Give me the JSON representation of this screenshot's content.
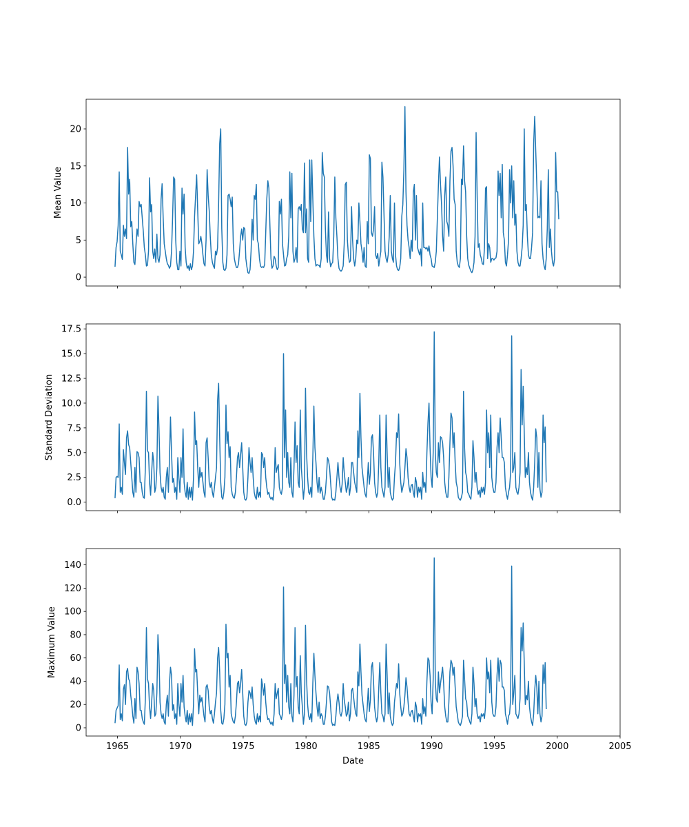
{
  "chart_data": [
    {
      "type": "line",
      "ylabel": "Mean Value",
      "xlabel": "",
      "xlim": [
        1962.5,
        2005
      ],
      "ylim": [
        -1.2,
        24
      ],
      "yticks": [
        0,
        5,
        10,
        15,
        20
      ],
      "ytick_labels": [
        "0",
        "5",
        "10",
        "15",
        "20"
      ],
      "xticks": [
        1965,
        1970,
        1975,
        1980,
        1985,
        1990,
        1995,
        2000,
        2005
      ],
      "xtick_labels": [
        "",
        "",
        "",
        "",
        "",
        "",
        "",
        "",
        ""
      ],
      "color": "#1f77b4",
      "x_start": 1964.8,
      "x_step_years": 0.0833,
      "values": [
        1.4,
        4.0,
        4.8,
        7.0,
        14.2,
        3.5,
        3.0,
        2.4,
        7.0,
        5.5,
        6.5,
        5.2,
        17.5,
        11.2,
        13.2,
        6.8,
        7.5,
        4.5,
        2.0,
        1.7,
        4.2,
        6.5,
        5.5,
        10.2,
        9.5,
        9.8,
        8.0,
        6.2,
        4.0,
        3.0,
        1.5,
        1.6,
        3.5,
        13.4,
        8.8,
        9.8,
        3.5,
        2.5,
        3.8,
        2.0,
        5.8,
        2.5,
        2.0,
        3.0,
        10.5,
        12.6,
        8.0,
        4.5,
        3.5,
        2.5,
        1.8,
        1.6,
        1.2,
        1.5,
        3.5,
        8.0,
        13.5,
        13.2,
        5.0,
        2.0,
        1.0,
        1.0,
        3.5,
        1.5,
        12.0,
        8.5,
        11.2,
        4.0,
        2.0,
        1.2,
        1.5,
        0.9,
        1.8,
        1.0,
        1.5,
        3.5,
        8.2,
        11.0,
        13.8,
        9.0,
        4.5,
        4.8,
        5.5,
        4.5,
        3.0,
        1.8,
        1.5,
        5.0,
        14.5,
        11.0,
        9.0,
        5.5,
        3.0,
        2.0,
        1.5,
        1.2,
        3.5,
        3.0,
        4.0,
        10.0,
        18.0,
        20.0,
        6.5,
        2.0,
        1.0,
        0.9,
        1.2,
        3.0,
        11.0,
        11.2,
        10.5,
        9.5,
        10.8,
        4.5,
        2.5,
        1.8,
        1.3,
        1.3,
        1.8,
        3.5,
        5.5,
        6.5,
        5.0,
        6.7,
        6.5,
        2.5,
        1.4,
        0.6,
        0.5,
        1.0,
        3.5,
        7.8,
        5.0,
        11.0,
        10.5,
        12.5,
        5.0,
        4.5,
        2.5,
        1.5,
        1.3,
        1.4,
        1.3,
        1.7,
        6.0,
        10.5,
        13.0,
        12.0,
        7.0,
        2.5,
        1.2,
        1.5,
        2.8,
        2.5,
        1.5,
        1.0,
        1.3,
        10.2,
        8.5,
        10.5,
        4.5,
        3.0,
        1.5,
        1.6,
        2.5,
        3.0,
        5.5,
        14.2,
        8.0,
        14.0,
        3.5,
        2.0,
        2.5,
        4.0,
        2.0,
        9.2,
        9.5,
        9.0,
        9.8,
        6.5,
        6.0,
        15.4,
        6.0,
        9.2,
        2.5,
        2.0,
        15.8,
        7.5,
        15.8,
        10.5,
        5.5,
        2.5,
        1.5,
        1.7,
        1.6,
        1.6,
        1.3,
        2.5,
        16.8,
        14.0,
        13.5,
        6.5,
        3.0,
        2.0,
        8.8,
        2.5,
        1.4,
        1.8,
        2.0,
        5.5,
        13.5,
        8.0,
        5.5,
        2.5,
        1.2,
        0.9,
        0.8,
        1.0,
        1.5,
        4.5,
        12.5,
        12.8,
        5.0,
        3.0,
        2.0,
        2.2,
        9.5,
        5.0,
        2.5,
        1.5,
        2.5,
        5.0,
        4.5,
        10.0,
        7.5,
        4.5,
        3.5,
        2.0,
        4.0,
        1.5,
        1.3,
        7.5,
        4.5,
        16.5,
        16.0,
        6.0,
        5.5,
        6.5,
        9.5,
        3.0,
        2.5,
        3.2,
        1.5,
        2.5,
        3.5,
        15.5,
        13.5,
        8.5,
        3.5,
        2.5,
        2.0,
        3.0,
        5.5,
        11.0,
        3.5,
        2.5,
        2.0,
        10.0,
        3.0,
        1.5,
        1.0,
        0.9,
        1.3,
        2.5,
        8.2,
        9.8,
        14.5,
        23.0,
        11.5,
        7.0,
        5.0,
        4.0,
        2.5,
        5.0,
        3.5,
        11.5,
        12.5,
        5.0,
        11.0,
        4.0,
        3.5,
        3.0,
        3.8,
        1.5,
        10.0,
        4.0,
        4.0,
        3.8,
        4.0,
        3.5,
        4.2,
        3.0,
        2.5,
        1.5,
        1.4,
        1.3,
        2.0,
        3.5,
        8.0,
        12.5,
        16.2,
        12.5,
        9.8,
        5.5,
        3.5,
        11.0,
        13.5,
        7.5,
        7.0,
        5.5,
        13.0,
        17.0,
        17.5,
        15.0,
        10.5,
        9.8,
        3.5,
        2.0,
        1.5,
        1.3,
        2.5,
        13.2,
        12.5,
        17.7,
        13.0,
        11.5,
        5.5,
        2.5,
        1.6,
        1.2,
        0.8,
        0.6,
        1.0,
        2.0,
        5.5,
        19.5,
        11.0,
        4.0,
        4.5,
        3.0,
        2.5,
        1.8,
        1.7,
        4.0,
        12.0,
        12.2,
        2.5,
        4.5,
        4.0,
        2.0,
        2.5,
        2.5,
        2.3,
        2.5,
        2.6,
        3.5,
        14.3,
        11.0,
        14.0,
        8.0,
        15.2,
        6.0,
        5.0,
        2.0,
        1.5,
        3.0,
        5.0,
        14.5,
        10.0,
        15.0,
        8.0,
        13.0,
        7.0,
        8.5,
        3.5,
        2.0,
        1.5,
        1.5,
        2.5,
        4.0,
        7.0,
        20.0,
        9.0,
        9.8,
        5.5,
        3.0,
        2.5,
        2.5,
        4.0,
        6.0,
        18.0,
        21.7,
        17.0,
        12.5,
        8.0,
        8.2,
        8.0,
        13.0,
        4.5,
        2.5,
        1.5,
        1.0,
        2.5,
        6.5,
        14.5,
        4.0,
        6.5,
        3.5,
        2.0,
        1.5,
        2.5,
        16.8,
        11.5,
        11.5,
        7.8
      ]
    },
    {
      "type": "line",
      "ylabel": "Standard Deviation",
      "xlabel": "",
      "xlim": [
        1962.5,
        2005
      ],
      "ylim": [
        -0.86,
        18.0
      ],
      "yticks": [
        0.0,
        2.5,
        5.0,
        7.5,
        10.0,
        12.5,
        15.0,
        17.5
      ],
      "ytick_labels": [
        "0.0",
        "2.5",
        "5.0",
        "7.5",
        "10.0",
        "12.5",
        "15.0",
        "17.5"
      ],
      "xticks": [
        1965,
        1970,
        1975,
        1980,
        1985,
        1990,
        1995,
        2000,
        2005
      ],
      "xtick_labels": [
        "",
        "",
        "",
        "",
        "",
        "",
        "",
        "",
        ""
      ],
      "color": "#1f77b4",
      "x_start": 1964.8,
      "x_step_years": 0.0833,
      "values": [
        0.4,
        2.5,
        2.6,
        2.5,
        7.9,
        1.0,
        1.5,
        0.8,
        5.3,
        4.0,
        2.8,
        6.5,
        7.2,
        5.8,
        5.5,
        4.0,
        2.5,
        1.0,
        0.5,
        3.5,
        1.0,
        5.1,
        5.0,
        4.5,
        2.0,
        2.0,
        1.0,
        0.5,
        0.4,
        3.5,
        11.2,
        5.2,
        5.0,
        2.0,
        0.7,
        3.0,
        5.0,
        4.0,
        1.0,
        1.5,
        3.5,
        10.7,
        7.5,
        3.0,
        1.5,
        1.0,
        1.5,
        0.5,
        0.3,
        2.5,
        3.5,
        1.0,
        4.2,
        8.6,
        5.0,
        2.0,
        2.4,
        1.0,
        1.5,
        0.3,
        4.5,
        2.5,
        1.0,
        4.5,
        2.5,
        7.4,
        2.0,
        1.0,
        0.5,
        2.0,
        0.3,
        1.5,
        0.5,
        1.5,
        0.2,
        2.5,
        9.1,
        5.8,
        6.2,
        3.5,
        1.5,
        3.5,
        2.5,
        3.0,
        2.0,
        1.0,
        0.5,
        6.0,
        6.5,
        4.5,
        2.0,
        1.5,
        2.0,
        1.0,
        0.5,
        1.5,
        2.5,
        3.5,
        10.3,
        12.0,
        6.5,
        2.0,
        0.5,
        0.3,
        1.0,
        2.5,
        9.8,
        5.9,
        7.1,
        4.5,
        5.6,
        1.5,
        0.8,
        0.5,
        0.4,
        1.0,
        2.5,
        4.5,
        5.0,
        3.5,
        4.8,
        6.0,
        3.5,
        1.0,
        0.3,
        0.2,
        0.5,
        2.5,
        5.5,
        4.0,
        3.0,
        4.5,
        2.5,
        1.0,
        0.5,
        0.3,
        1.5,
        0.5,
        1.0,
        0.5,
        5.0,
        4.8,
        3.5,
        4.5,
        2.5,
        1.5,
        0.8,
        1.0,
        0.5,
        0.3,
        0.5,
        0.2,
        1.5,
        5.5,
        3.0,
        3.5,
        3.8,
        1.5,
        1.0,
        0.8,
        1.5,
        15.0,
        4.5,
        9.3,
        2.5,
        5.0,
        2.0,
        1.5,
        4.5,
        1.0,
        0.5,
        3.5,
        8.1,
        4.0,
        5.7,
        2.0,
        1.5,
        9.3,
        3.5,
        2.0,
        0.3,
        1.5,
        11.5,
        5.0,
        2.5,
        1.0,
        0.8,
        1.5,
        0.5,
        4.5,
        9.7,
        5.5,
        4.0,
        2.0,
        1.0,
        2.5,
        0.9,
        1.5,
        1.0,
        0.3,
        0.3,
        1.0,
        2.5,
        4.5,
        4.2,
        3.5,
        2.0,
        0.5,
        0.2,
        0.3,
        0.2,
        1.0,
        2.5,
        4.0,
        2.5,
        1.5,
        1.0,
        1.8,
        4.5,
        3.0,
        2.0,
        1.0,
        1.5,
        2.5,
        0.7,
        1.5,
        4.0,
        4.0,
        3.0,
        2.0,
        1.5,
        1.0,
        7.2,
        4.5,
        11.0,
        6.5,
        3.5,
        2.5,
        1.5,
        0.8,
        0.5,
        2.0,
        4.0,
        1.8,
        3.0,
        6.5,
        6.8,
        5.0,
        2.0,
        1.0,
        0.5,
        1.0,
        4.0,
        8.8,
        3.5,
        1.5,
        1.0,
        0.5,
        1.5,
        8.8,
        5.0,
        1.5,
        3.5,
        1.0,
        0.5,
        0.2,
        0.4,
        2.5,
        4.0,
        7.0,
        6.5,
        8.9,
        4.0,
        2.0,
        1.0,
        1.5,
        2.0,
        3.5,
        5.4,
        4.5,
        2.5,
        1.5,
        1.0,
        1.7,
        1.8,
        1.0,
        0.5,
        2.5,
        2.0,
        0.5,
        1.5,
        1.0,
        1.5,
        0.3,
        3.0,
        1.5,
        2.0,
        1.0,
        5.0,
        8.0,
        10.0,
        5.5,
        2.5,
        1.5,
        5.0,
        17.2,
        5.0,
        3.0,
        2.5,
        6.0,
        4.0,
        6.6,
        6.5,
        6.0,
        4.5,
        2.0,
        1.0,
        0.5,
        0.5,
        2.5,
        6.0,
        9.0,
        8.5,
        5.5,
        7.0,
        4.0,
        2.0,
        1.5,
        0.5,
        0.3,
        0.2,
        0.5,
        1.0,
        11.2,
        5.5,
        3.0,
        2.5,
        1.0,
        0.8,
        0.5,
        0.3,
        1.5,
        6.2,
        4.5,
        2.0,
        3.0,
        1.5,
        0.8,
        1.2,
        0.5,
        1.5,
        1.0,
        1.5,
        0.8,
        2.0,
        9.3,
        5.0,
        7.0,
        3.5,
        8.8,
        2.5,
        1.5,
        1.0,
        1.0,
        2.0,
        5.5,
        7.0,
        5.0,
        8.5,
        6.5,
        4.5,
        4.5,
        4.0,
        1.5,
        0.8,
        0.3,
        1.0,
        1.5,
        3.0,
        16.8,
        3.0,
        3.5,
        5.0,
        1.5,
        1.0,
        0.8,
        1.5,
        3.0,
        13.4,
        7.8,
        11.7,
        7.0,
        2.5,
        3.5,
        2.8,
        5.0,
        2.0,
        1.0,
        0.5,
        0.2,
        1.5,
        4.0,
        7.4,
        6.5,
        1.5,
        5.0,
        1.3,
        0.5,
        1.0,
        8.8,
        6.0,
        7.6,
        2.0
      ]
    },
    {
      "type": "line",
      "ylabel": "Maximum Value",
      "xlabel": "Date",
      "xlim": [
        1962.5,
        2005
      ],
      "ylim": [
        -7.1,
        154
      ],
      "yticks": [
        0,
        20,
        40,
        60,
        80,
        100,
        120,
        140
      ],
      "ytick_labels": [
        "0",
        "20",
        "40",
        "60",
        "80",
        "100",
        "120",
        "140"
      ],
      "xticks": [
        1965,
        1970,
        1975,
        1980,
        1985,
        1990,
        1995,
        2000,
        2005
      ],
      "xtick_labels": [
        "1965",
        "1970",
        "1975",
        "1980",
        "1985",
        "1990",
        "1995",
        "2000",
        "2005"
      ],
      "color": "#1f77b4",
      "x_start": 1964.8,
      "x_step_years": 0.0833,
      "values": [
        4,
        15,
        17,
        19,
        54,
        7,
        12,
        6,
        33,
        37,
        20,
        48,
        51,
        42,
        40,
        28,
        20,
        10,
        4,
        25,
        8,
        52,
        48,
        38,
        15,
        15,
        8,
        5,
        3,
        25,
        86,
        42,
        38,
        18,
        8,
        22,
        38,
        32,
        10,
        12,
        30,
        80,
        62,
        22,
        12,
        8,
        12,
        5,
        3,
        20,
        28,
        10,
        38,
        52,
        45,
        15,
        20,
        8,
        12,
        3,
        38,
        20,
        10,
        38,
        22,
        45,
        18,
        10,
        5,
        15,
        3,
        12,
        5,
        12,
        2,
        20,
        68,
        48,
        50,
        30,
        12,
        28,
        22,
        26,
        18,
        10,
        5,
        35,
        37,
        32,
        18,
        12,
        15,
        8,
        4,
        12,
        22,
        30,
        60,
        69,
        48,
        15,
        4,
        3,
        8,
        20,
        89,
        60,
        64,
        35,
        45,
        12,
        8,
        5,
        4,
        10,
        22,
        38,
        40,
        30,
        38,
        50,
        30,
        10,
        3,
        2,
        5,
        22,
        32,
        30,
        25,
        35,
        20,
        10,
        5,
        3,
        12,
        5,
        10,
        5,
        42,
        36,
        28,
        38,
        22,
        12,
        7,
        8,
        5,
        3,
        5,
        2,
        12,
        38,
        25,
        30,
        34,
        12,
        10,
        7,
        12,
        121,
        38,
        54,
        22,
        45,
        18,
        12,
        38,
        10,
        5,
        28,
        86,
        35,
        44,
        18,
        12,
        62,
        30,
        18,
        3,
        12,
        88,
        42,
        20,
        10,
        7,
        12,
        5,
        38,
        64,
        45,
        30,
        18,
        10,
        22,
        8,
        12,
        10,
        3,
        3,
        10,
        22,
        36,
        35,
        30,
        18,
        5,
        2,
        3,
        2,
        10,
        22,
        29,
        22,
        12,
        10,
        14,
        38,
        24,
        18,
        10,
        12,
        22,
        6,
        12,
        32,
        34,
        26,
        18,
        12,
        10,
        48,
        36,
        72,
        48,
        28,
        20,
        12,
        7,
        5,
        18,
        34,
        14,
        24,
        52,
        56,
        40,
        18,
        10,
        5,
        10,
        34,
        56,
        30,
        12,
        10,
        5,
        12,
        72,
        45,
        12,
        30,
        10,
        5,
        2,
        4,
        22,
        30,
        38,
        34,
        55,
        30,
        18,
        10,
        12,
        18,
        28,
        43,
        35,
        22,
        12,
        10,
        14,
        15,
        10,
        5,
        22,
        18,
        5,
        12,
        10,
        12,
        3,
        25,
        12,
        18,
        10,
        40,
        60,
        58,
        45,
        22,
        12,
        42,
        146,
        40,
        25,
        22,
        48,
        30,
        38,
        45,
        52,
        38,
        18,
        10,
        5,
        5,
        22,
        48,
        58,
        55,
        45,
        52,
        35,
        18,
        12,
        5,
        3,
        2,
        5,
        10,
        58,
        42,
        25,
        22,
        10,
        8,
        5,
        3,
        12,
        52,
        38,
        18,
        25,
        12,
        8,
        10,
        5,
        12,
        10,
        12,
        8,
        18,
        60,
        42,
        48,
        30,
        58,
        22,
        12,
        10,
        10,
        18,
        45,
        60,
        40,
        58,
        55,
        35,
        35,
        32,
        12,
        8,
        3,
        10,
        12,
        25,
        139,
        20,
        30,
        45,
        12,
        10,
        8,
        12,
        25,
        86,
        66,
        90,
        56,
        20,
        28,
        24,
        40,
        18,
        10,
        5,
        2,
        12,
        32,
        45,
        35,
        12,
        40,
        12,
        5,
        10,
        54,
        38,
        56,
        16
      ]
    }
  ]
}
